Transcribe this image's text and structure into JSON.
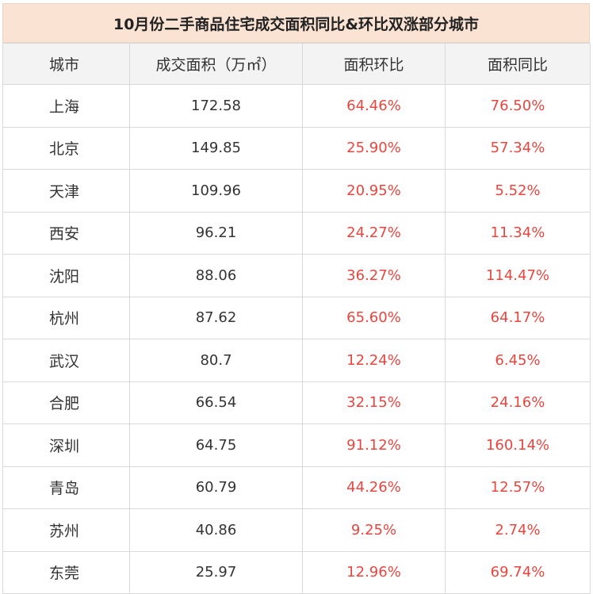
{
  "title": "10月份二手商品住宅成交面积同比&环比双涨部分城市",
  "headers": [
    "城市",
    "成交面积（万㎡）",
    "面积环比",
    "面积同比"
  ],
  "rows": [
    {
      "city": "上海",
      "area": "172.58",
      "mom": "64.46%",
      "yoy": "76.50%"
    },
    {
      "city": "北京",
      "area": "149.85",
      "mom": "25.90%",
      "yoy": "57.34%"
    },
    {
      "city": "天津",
      "area": "109.96",
      "mom": "20.95%",
      "yoy": "5.52%"
    },
    {
      "city": "西安",
      "area": "96.21",
      "mom": "24.27%",
      "yoy": "11.34%"
    },
    {
      "city": "沈阳",
      "area": "88.06",
      "mom": "36.27%",
      "yoy": "114.47%"
    },
    {
      "city": "杭州",
      "area": "87.62",
      "mom": "65.60%",
      "yoy": "64.17%"
    },
    {
      "city": "武汉",
      "area": "80.7",
      "mom": "12.24%",
      "yoy": "6.45%"
    },
    {
      "city": "合肥",
      "area": "66.54",
      "mom": "32.15%",
      "yoy": "24.16%"
    },
    {
      "city": "深圳",
      "area": "64.75",
      "mom": "91.12%",
      "yoy": "160.14%"
    },
    {
      "city": "青岛",
      "area": "60.79",
      "mom": "44.26%",
      "yoy": "12.57%"
    },
    {
      "city": "苏州",
      "area": "40.86",
      "mom": "9.25%",
      "yoy": "2.74%"
    },
    {
      "city": "东莞",
      "area": "25.97",
      "mom": "12.96%",
      "yoy": "69.74%"
    }
  ],
  "colors": {
    "title_bg": "#fbe3d4",
    "header_bg": "#f3f3f3",
    "percent_text": "#e8463f"
  }
}
